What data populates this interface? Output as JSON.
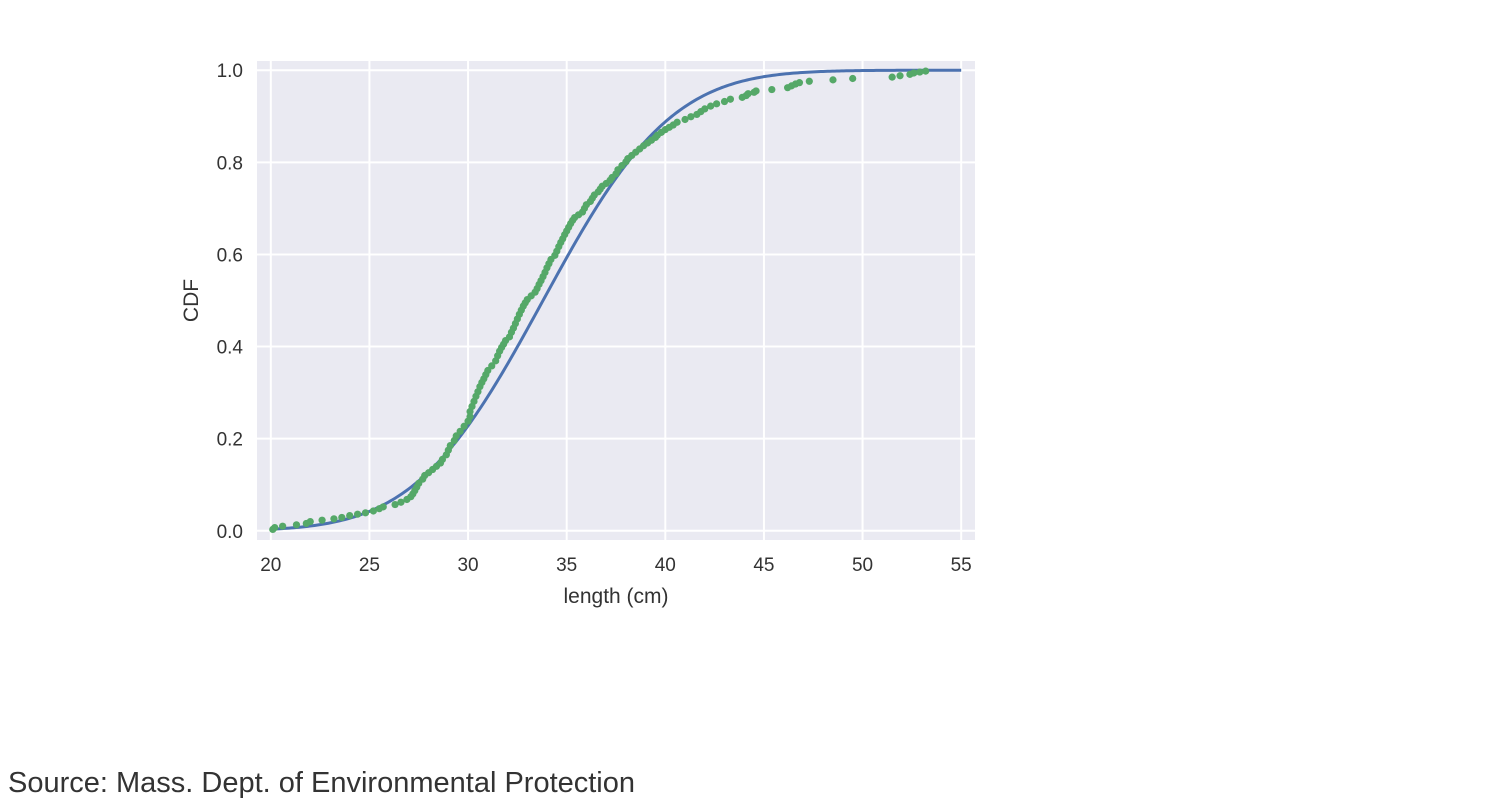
{
  "source_note": "Source: Mass. Dept. of Environmental Protection",
  "colors": {
    "background": "#eaeaf2",
    "grid": "#ffffff",
    "model_line": "#4c72b0",
    "data_points": "#55a868",
    "text": "#333333"
  },
  "chart_data": {
    "type": "line",
    "title": "",
    "xlabel": "length (cm)",
    "ylabel": "CDF",
    "xlim": [
      19.3,
      55.7
    ],
    "ylim": [
      -0.02,
      1.02
    ],
    "xticks": [
      20,
      25,
      30,
      35,
      40,
      45,
      50,
      55
    ],
    "xtick_labels": [
      "20",
      "25",
      "30",
      "35",
      "40",
      "45",
      "50",
      "55"
    ],
    "yticks": [
      0.0,
      0.2,
      0.4,
      0.6,
      0.8,
      1.0
    ],
    "ytick_labels": [
      "0.0",
      "0.2",
      "0.4",
      "0.6",
      "0.8",
      "1.0"
    ],
    "grid": true,
    "legend": "none",
    "series": [
      {
        "style": "line",
        "model": "normal",
        "mean": 33.8,
        "sd": 5.1,
        "x": [
          20,
          21,
          22,
          23,
          24,
          25,
          26,
          27,
          28,
          29,
          30,
          31,
          32,
          33,
          34,
          35,
          36,
          37,
          38,
          39,
          40,
          41,
          42,
          43,
          44,
          45,
          46,
          47,
          48,
          49,
          50,
          51,
          52,
          53,
          54,
          55
        ],
        "y": [
          0.003,
          0.005,
          0.01,
          0.017,
          0.027,
          0.042,
          0.063,
          0.091,
          0.128,
          0.173,
          0.227,
          0.291,
          0.361,
          0.437,
          0.516,
          0.593,
          0.667,
          0.735,
          0.795,
          0.846,
          0.887,
          0.92,
          0.945,
          0.963,
          0.976,
          0.986,
          0.992,
          0.995,
          0.997,
          0.9985,
          0.9993,
          0.9997,
          0.9999,
          1.0,
          1.0,
          1.0
        ]
      },
      {
        "style": "points",
        "x": [
          20.1,
          20.2,
          20.6,
          21.3,
          21.8,
          22.0,
          22.6,
          23.2,
          23.6,
          24.0,
          24.4,
          24.8,
          25.2,
          25.5,
          25.7,
          26.3,
          26.6,
          26.9,
          27.1,
          27.2,
          27.3,
          27.4,
          27.5,
          27.7,
          27.8,
          28.0,
          28.2,
          28.4,
          28.6,
          28.7,
          28.9,
          29.0,
          29.1,
          29.3,
          29.4,
          29.6,
          29.8,
          30.0,
          30.1,
          30.1,
          30.2,
          30.3,
          30.4,
          30.5,
          30.6,
          30.7,
          30.8,
          30.9,
          31.0,
          31.2,
          31.4,
          31.5,
          31.6,
          31.7,
          31.8,
          31.9,
          32.1,
          32.2,
          32.3,
          32.4,
          32.5,
          32.6,
          32.7,
          32.8,
          32.9,
          33.0,
          33.2,
          33.4,
          33.5,
          33.6,
          33.7,
          33.8,
          33.9,
          34.0,
          34.1,
          34.2,
          34.4,
          34.5,
          34.6,
          34.7,
          34.8,
          34.9,
          35.0,
          35.1,
          35.2,
          35.3,
          35.4,
          35.6,
          35.8,
          35.9,
          36.0,
          36.2,
          36.3,
          36.4,
          36.6,
          36.7,
          36.8,
          37.0,
          37.2,
          37.3,
          37.5,
          37.6,
          37.8,
          38.0,
          38.1,
          38.3,
          38.5,
          38.7,
          38.9,
          39.1,
          39.3,
          39.5,
          39.6,
          39.8,
          40.0,
          40.2,
          40.4,
          40.6,
          41.0,
          41.3,
          41.6,
          41.8,
          42.0,
          42.3,
          42.6,
          43.0,
          43.3,
          43.9,
          44.1,
          44.2,
          44.5,
          44.6,
          45.4,
          46.2,
          46.4,
          46.6,
          46.8,
          47.3,
          48.5,
          49.5,
          51.5,
          51.9,
          52.4,
          52.6,
          52.9,
          53.2
        ],
        "y": [
          0.003,
          0.007,
          0.01,
          0.013,
          0.016,
          0.02,
          0.023,
          0.026,
          0.029,
          0.033,
          0.036,
          0.039,
          0.043,
          0.048,
          0.052,
          0.057,
          0.062,
          0.068,
          0.074,
          0.08,
          0.087,
          0.095,
          0.103,
          0.112,
          0.12,
          0.126,
          0.133,
          0.14,
          0.147,
          0.155,
          0.165,
          0.175,
          0.185,
          0.196,
          0.206,
          0.216,
          0.227,
          0.238,
          0.248,
          0.259,
          0.27,
          0.281,
          0.292,
          0.302,
          0.313,
          0.322,
          0.33,
          0.339,
          0.348,
          0.358,
          0.369,
          0.38,
          0.39,
          0.398,
          0.405,
          0.413,
          0.421,
          0.431,
          0.44,
          0.45,
          0.46,
          0.47,
          0.479,
          0.488,
          0.495,
          0.502,
          0.51,
          0.518,
          0.526,
          0.535,
          0.543,
          0.552,
          0.561,
          0.571,
          0.58,
          0.589,
          0.598,
          0.607,
          0.617,
          0.626,
          0.634,
          0.643,
          0.651,
          0.659,
          0.667,
          0.674,
          0.68,
          0.686,
          0.692,
          0.7,
          0.708,
          0.715,
          0.722,
          0.729,
          0.736,
          0.742,
          0.748,
          0.754,
          0.761,
          0.767,
          0.775,
          0.784,
          0.793,
          0.801,
          0.808,
          0.815,
          0.822,
          0.829,
          0.836,
          0.842,
          0.848,
          0.854,
          0.859,
          0.865,
          0.871,
          0.876,
          0.881,
          0.887,
          0.893,
          0.899,
          0.904,
          0.91,
          0.916,
          0.922,
          0.927,
          0.932,
          0.937,
          0.941,
          0.945,
          0.949,
          0.952,
          0.955,
          0.958,
          0.962,
          0.966,
          0.97,
          0.973,
          0.976,
          0.979,
          0.982,
          0.985,
          0.988,
          0.991,
          0.994,
          0.996,
          0.998
        ]
      }
    ]
  }
}
